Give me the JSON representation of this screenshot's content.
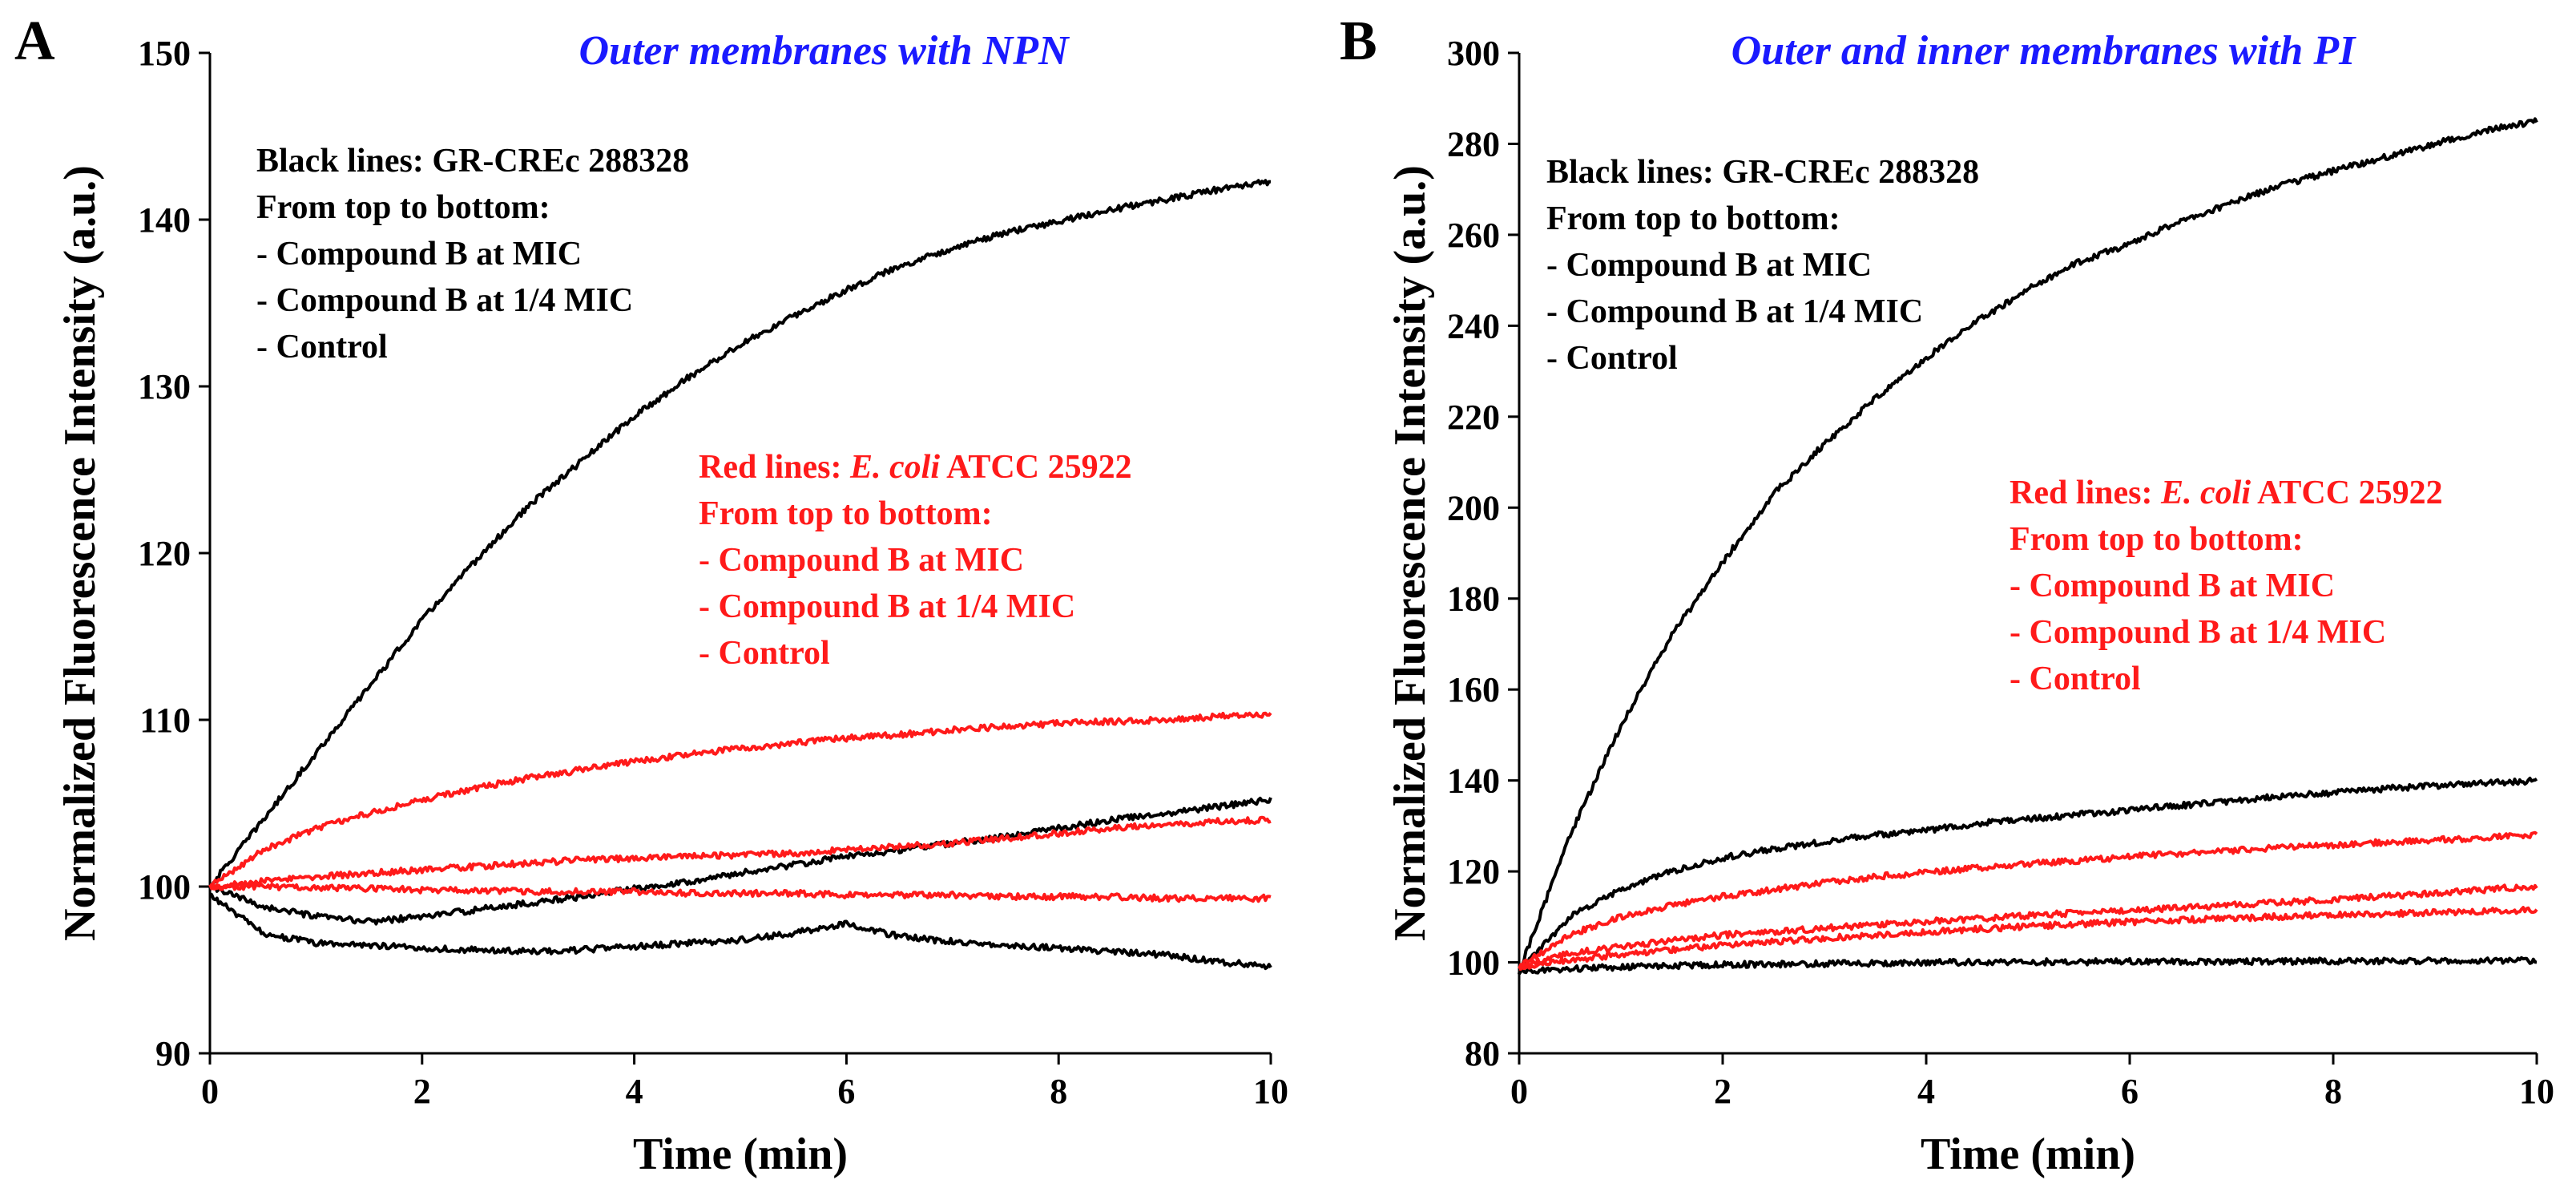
{
  "colors": {
    "title": "#1a1aff",
    "black_series": "#000000",
    "red_series": "#ff1a1a",
    "axis": "#000000"
  },
  "chart_data": [
    {
      "type": "line",
      "panel_label": "A",
      "title": "Outer membranes with NPN",
      "xlabel": "Time (min)",
      "ylabel": "Normalized Fluorescence Intensity (a.u.)",
      "xlim": [
        0,
        10
      ],
      "ylim": [
        90,
        150
      ],
      "xticks": [
        0,
        2,
        4,
        6,
        8,
        10
      ],
      "yticks": [
        90,
        100,
        110,
        120,
        130,
        140,
        150
      ],
      "annotations": {
        "black": [
          "Black lines: GR-CREc 288328",
          "From top to bottom:",
          "- Compound B at MIC",
          "- Compound B at 1/4 MIC",
          "- Control"
        ],
        "red_prefix": "Red lines: ",
        "red_species": "E. coli",
        "red_strain": " ATCC 25922",
        "red": [
          "From top to bottom:",
          "- Compound B at MIC",
          "- Compound B at 1/4 MIC",
          "- Control"
        ]
      },
      "series": [
        {
          "name": "GR-CREc 288328 - Compound B at MIC",
          "color": "#000000",
          "x": [
            0,
            0.5,
            1,
            1.5,
            2,
            2.5,
            3,
            3.5,
            4,
            4.5,
            5,
            5.5,
            6,
            6.5,
            7,
            7.5,
            8,
            8.5,
            9,
            9.5,
            10
          ],
          "y": [
            100,
            104,
            108,
            112,
            116,
            119.5,
            122.8,
            125.5,
            128.2,
            130.5,
            132.5,
            134.2,
            135.8,
            137.2,
            138.3,
            139.2,
            139.9,
            140.6,
            141.2,
            141.8,
            142.3
          ]
        },
        {
          "name": "GR-CREc 288328 - Compound B at 1/4 MIC",
          "color": "#000000",
          "x": [
            0,
            0.5,
            1,
            1.5,
            2,
            2.5,
            3,
            3.5,
            4,
            4.5,
            5,
            5.5,
            6,
            6.5,
            7,
            7.5,
            8,
            8.5,
            9,
            9.5,
            10
          ],
          "y": [
            100,
            98.8,
            98.2,
            97.9,
            98.2,
            98.6,
            99.0,
            99.4,
            99.9,
            100.3,
            100.8,
            101.3,
            101.8,
            102.2,
            102.6,
            103.0,
            103.5,
            104.0,
            104.4,
            104.8,
            105.2
          ]
        },
        {
          "name": "GR-CREc 288328 - Control",
          "color": "#000000",
          "x": [
            0,
            0.5,
            1,
            1.5,
            2,
            2.5,
            3,
            3.5,
            4,
            4.5,
            5,
            5.5,
            6,
            6.5,
            7,
            7.5,
            8,
            8.5,
            9,
            9.5,
            10
          ],
          "y": [
            99.5,
            97.2,
            96.6,
            96.5,
            96.3,
            96.2,
            96.1,
            96.2,
            96.4,
            96.6,
            96.8,
            97.2,
            97.8,
            97.0,
            96.7,
            96.5,
            96.3,
            96.1,
            95.9,
            95.5,
            95.2
          ]
        },
        {
          "name": "E. coli ATCC 25922 - Compound B at MIC",
          "color": "#ff1a1a",
          "x": [
            0,
            0.5,
            1,
            1.5,
            2,
            2.5,
            3,
            3.5,
            4,
            4.5,
            5,
            5.5,
            6,
            6.5,
            7,
            7.5,
            8,
            8.5,
            9,
            9.5,
            10
          ],
          "y": [
            100,
            102.2,
            103.5,
            104.4,
            105.2,
            105.9,
            106.5,
            107.0,
            107.5,
            107.9,
            108.3,
            108.6,
            108.9,
            109.1,
            109.4,
            109.6,
            109.8,
            109.9,
            110.0,
            110.2,
            110.3
          ]
        },
        {
          "name": "E. coli ATCC 25922 - Compound B at 1/4 MIC",
          "color": "#ff1a1a",
          "x": [
            0,
            0.5,
            1,
            1.5,
            2,
            2.5,
            3,
            3.5,
            4,
            4.5,
            5,
            5.5,
            6,
            6.5,
            7,
            7.5,
            8,
            8.5,
            9,
            9.5,
            10
          ],
          "y": [
            100,
            100.3,
            100.6,
            100.8,
            101.0,
            101.2,
            101.4,
            101.6,
            101.7,
            101.8,
            101.9,
            102.0,
            102.2,
            102.4,
            102.6,
            102.9,
            103.2,
            103.5,
            103.7,
            103.9,
            104.0
          ]
        },
        {
          "name": "E. coli ATCC 25922 - Control",
          "color": "#ff1a1a",
          "x": [
            0,
            0.5,
            1,
            1.5,
            2,
            2.5,
            3,
            3.5,
            4,
            4.5,
            5,
            5.5,
            6,
            6.5,
            7,
            7.5,
            8,
            8.5,
            9,
            9.5,
            10
          ],
          "y": [
            100,
            100.0,
            99.9,
            99.9,
            99.8,
            99.8,
            99.7,
            99.7,
            99.7,
            99.6,
            99.6,
            99.6,
            99.5,
            99.5,
            99.5,
            99.4,
            99.4,
            99.4,
            99.3,
            99.3,
            99.3
          ]
        }
      ]
    },
    {
      "type": "line",
      "panel_label": "B",
      "title": "Outer and inner membranes with PI",
      "xlabel": "Time (min)",
      "ylabel": "Normalized Fluorescence Intensity (a.u.)",
      "xlim": [
        0,
        10
      ],
      "ylim": [
        80,
        300
      ],
      "xticks": [
        0,
        2,
        4,
        6,
        8,
        10
      ],
      "yticks": [
        80,
        100,
        120,
        140,
        160,
        180,
        200,
        220,
        240,
        260,
        280,
        300
      ],
      "annotations": {
        "black": [
          "Black lines: GR-CREc 288328",
          "From top to bottom:",
          "- Compound B at MIC",
          "- Compound B at 1/4 MIC",
          "- Control"
        ],
        "red_prefix": "Red lines: ",
        "red_species": "E. coli",
        "red_strain": " ATCC 25922",
        "red": [
          "From top to bottom:",
          "- Compound B at MIC",
          "- Compound B at 1/4 MIC",
          "- Control"
        ]
      },
      "series": [
        {
          "name": "GR-CREc 288328 - Compound B at MIC",
          "color": "#000000",
          "x": [
            0,
            0.5,
            1,
            1.5,
            2,
            2.5,
            3,
            3.5,
            4,
            4.5,
            5,
            5.5,
            6,
            6.5,
            7,
            7.5,
            8,
            8.5,
            9,
            9.5,
            10
          ],
          "y": [
            98,
            128,
            152,
            172,
            188,
            203,
            214,
            224,
            233,
            241,
            248,
            254,
            258,
            263,
            267,
            271,
            274,
            277,
            280,
            283,
            285
          ]
        },
        {
          "name": "GR-CREc 288328 - Compound B at 1/4 MIC",
          "color": "#000000",
          "x": [
            0,
            0.5,
            1,
            1.5,
            2,
            2.5,
            3,
            3.5,
            4,
            4.5,
            5,
            5.5,
            6,
            6.5,
            7,
            7.5,
            8,
            8.5,
            9,
            9.5,
            10
          ],
          "y": [
            98,
            110,
            116,
            120,
            123,
            125,
            126.5,
            128,
            129,
            130.5,
            131.5,
            132.5,
            133.5,
            134.5,
            135.5,
            136.5,
            137.3,
            138.2,
            138.8,
            139.4,
            140
          ]
        },
        {
          "name": "GR-CREc 288328 - Control",
          "color": "#000000",
          "x": [
            0,
            0.5,
            1,
            1.5,
            2,
            2.5,
            3,
            3.5,
            4,
            4.5,
            5,
            5.5,
            6,
            6.5,
            7,
            7.5,
            8,
            8.5,
            9,
            9.5,
            10
          ],
          "y": [
            98,
            98.5,
            99,
            99.3,
            99.5,
            99.6,
            99.7,
            99.8,
            100,
            100,
            100.1,
            100.1,
            100.2,
            100.2,
            100.2,
            100.2,
            100.3,
            100.3,
            100.3,
            100.4,
            100.4
          ]
        },
        {
          "name": "E. coli ATCC 25922 - Compound B at MIC",
          "color": "#ff1a1a",
          "x": [
            0,
            0.5,
            1,
            1.5,
            2,
            2.5,
            3,
            3.5,
            4,
            4.5,
            5,
            5.5,
            6,
            6.5,
            7,
            7.5,
            8,
            8.5,
            9,
            9.5,
            10
          ],
          "y": [
            99,
            106,
            110,
            112.5,
            114.5,
            116,
            117.5,
            118.8,
            119.8,
            120.8,
            121.6,
            122.4,
            123.2,
            124,
            124.6,
            125.2,
            125.8,
            126.4,
            126.9,
            127.4,
            128
          ]
        },
        {
          "name": "E. coli ATCC 25922 - Compound B at 1/4 MIC",
          "color": "#ff1a1a",
          "x": [
            0,
            0.5,
            1,
            1.5,
            2,
            2.5,
            3,
            3.5,
            4,
            4.5,
            5,
            5.5,
            6,
            6.5,
            7,
            7.5,
            8,
            8.5,
            9,
            9.5,
            10
          ],
          "y": [
            99,
            102,
            103.5,
            104.8,
            106,
            106.8,
            107.5,
            108.3,
            109,
            109.6,
            110.3,
            110.9,
            111.4,
            112,
            112.6,
            113.2,
            113.8,
            114.5,
            115.2,
            116,
            116.8
          ]
        },
        {
          "name": "E. coli ATCC 25922 - Control",
          "color": "#ff1a1a",
          "x": [
            0,
            0.5,
            1,
            1.5,
            2,
            2.5,
            3,
            3.5,
            4,
            4.5,
            5,
            5.5,
            6,
            6.5,
            7,
            7.5,
            8,
            8.5,
            9,
            9.5,
            10
          ],
          "y": [
            99,
            100.5,
            101.8,
            102.8,
            103.7,
            104.5,
            105.3,
            106,
            106.7,
            107.3,
            107.9,
            108.4,
            108.9,
            109.3,
            109.7,
            110.1,
            110.4,
            110.7,
            111,
            111.3,
            111.5
          ]
        }
      ]
    }
  ]
}
